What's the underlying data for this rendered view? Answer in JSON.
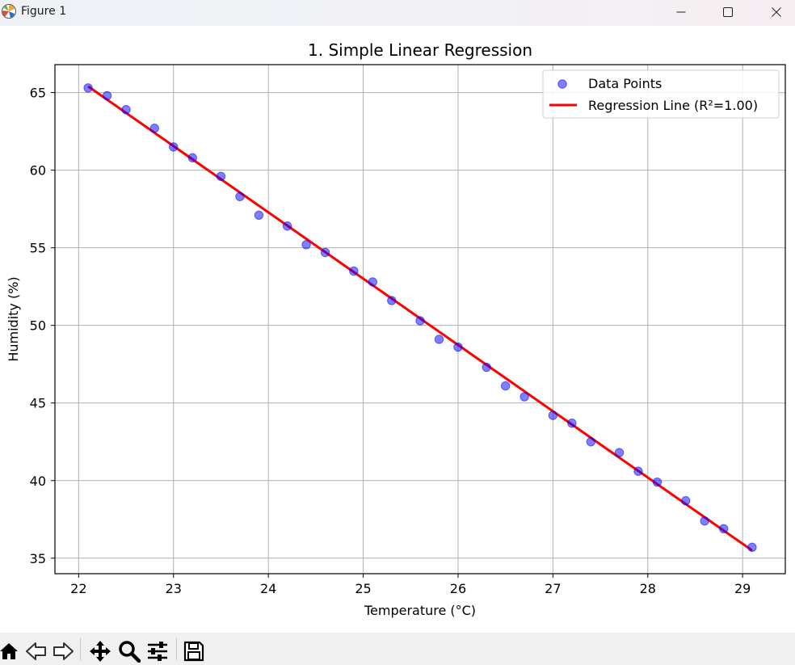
{
  "window": {
    "title": "Figure 1",
    "icons": [
      "matplotlib-logo-icon",
      "minimize-icon",
      "maximize-icon",
      "close-icon"
    ]
  },
  "toolbar": {
    "buttons": [
      "home-icon",
      "back-icon",
      "forward-icon",
      "pan-icon",
      "zoom-icon",
      "configure-subplots-icon",
      "save-icon"
    ]
  },
  "chart_data": {
    "type": "scatter",
    "title": "1. Simple Linear Regression",
    "xlabel": "Temperature (°C)",
    "ylabel": "Humidity (%)",
    "xlim": [
      21.75,
      29.45
    ],
    "ylim": [
      34.0,
      66.8
    ],
    "xticks": [
      "22",
      "23",
      "24",
      "25",
      "26",
      "27",
      "28",
      "29"
    ],
    "yticks": [
      "35",
      "40",
      "45",
      "50",
      "55",
      "60",
      "65"
    ],
    "grid": true,
    "legend": {
      "placement": "top-right",
      "entries": [
        "Data Points",
        "Regression Line (R²=1.00)"
      ]
    },
    "series": [
      {
        "name": "Data Points",
        "kind": "scatter",
        "color": "#0000ff",
        "x": [
          22.1,
          22.3,
          22.5,
          22.8,
          23.0,
          23.2,
          23.5,
          23.7,
          23.9,
          24.2,
          24.4,
          24.6,
          24.9,
          25.1,
          25.3,
          25.6,
          25.8,
          26.0,
          26.3,
          26.5,
          26.7,
          27.0,
          27.2,
          27.4,
          27.7,
          27.9,
          28.1,
          28.4,
          28.6,
          28.8,
          29.1
        ],
        "y": [
          65.3,
          64.8,
          63.9,
          62.7,
          61.5,
          60.8,
          59.6,
          58.3,
          57.1,
          56.4,
          55.2,
          54.7,
          53.5,
          52.8,
          51.6,
          50.3,
          49.1,
          48.6,
          47.3,
          46.1,
          45.4,
          44.2,
          43.7,
          42.5,
          41.8,
          40.6,
          39.9,
          38.7,
          37.4,
          36.9,
          35.7
        ]
      },
      {
        "name": "Regression Line (R²=1.00)",
        "kind": "line",
        "color": "#ff0000",
        "x": [
          22.1,
          29.1
        ],
        "y": [
          65.4,
          35.5
        ]
      }
    ]
  }
}
